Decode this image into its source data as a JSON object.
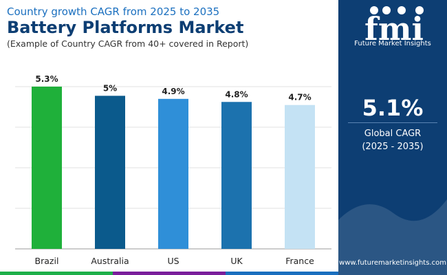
{
  "header": {
    "subtitle": "Country growth CAGR from 2025 to 2035",
    "title": "Battery Platforms Market",
    "note": "(Example of Country CAGR from 40+ covered in Report)"
  },
  "side_panel": {
    "logo_text": "fmi",
    "logo_caption": "Future Market Insights",
    "cagr_value": "5.1%",
    "cagr_label": "Global CAGR",
    "cagr_period": "(2025 - 2035)",
    "website": "www.futuremarketinsights.com"
  },
  "colors": {
    "panel_bg": "#0d3e73",
    "title": "#0d3e73",
    "subtitle": "#1a6fbf",
    "stripe": [
      "#1fb04a",
      "#7a1f9b",
      "#1a6fbf"
    ]
  },
  "chart_data": {
    "type": "bar",
    "categories": [
      "Brazil",
      "Australia",
      "US",
      "UK",
      "France"
    ],
    "values": [
      5.3,
      5.0,
      4.9,
      4.8,
      4.7
    ],
    "data_labels": [
      "5.3%",
      "5%",
      "4.9%",
      "4.8%",
      "4.7%"
    ],
    "bar_colors": [
      "#1fb03a",
      "#0b5a8c",
      "#2f8fd8",
      "#1c72ae",
      "#c4e2f4"
    ],
    "ylim": [
      0,
      5.3
    ],
    "grid": true,
    "gridlines": 4,
    "title": "",
    "xlabel": "",
    "ylabel": ""
  }
}
